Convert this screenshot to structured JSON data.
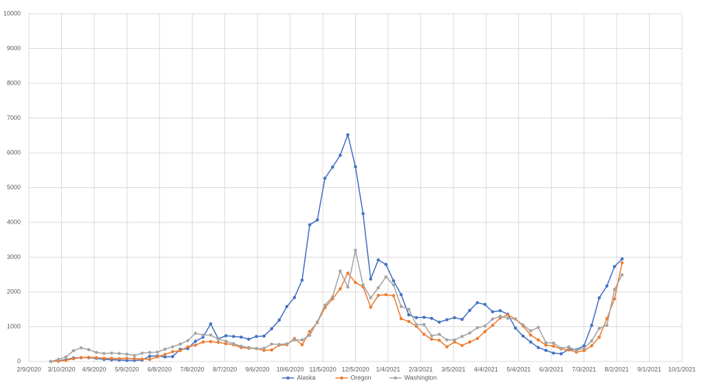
{
  "chart_data": {
    "type": "line",
    "x": [
      "2/29/2020",
      "3/7/2020",
      "3/14/2020",
      "3/21/2020",
      "3/28/2020",
      "4/4/2020",
      "4/11/2020",
      "4/18/2020",
      "4/25/2020",
      "5/2/2020",
      "5/9/2020",
      "5/16/2020",
      "5/23/2020",
      "5/30/2020",
      "6/6/2020",
      "6/13/2020",
      "6/20/2020",
      "6/27/2020",
      "7/4/2020",
      "7/11/2020",
      "7/18/2020",
      "7/25/2020",
      "8/1/2020",
      "8/8/2020",
      "8/15/2020",
      "8/22/2020",
      "8/29/2020",
      "9/5/2020",
      "9/12/2020",
      "9/19/2020",
      "9/26/2020",
      "10/3/2020",
      "10/10/2020",
      "10/17/2020",
      "10/24/2020",
      "10/31/2020",
      "11/7/2020",
      "11/14/2020",
      "11/21/2020",
      "11/28/2020",
      "12/5/2020",
      "12/12/2020",
      "12/19/2020",
      "12/26/2020",
      "1/2/2021",
      "1/9/2021",
      "1/16/2021",
      "1/23/2021",
      "1/30/2021",
      "2/6/2021",
      "2/13/2021",
      "2/20/2021",
      "2/27/2021",
      "3/6/2021",
      "3/13/2021",
      "3/20/2021",
      "3/27/2021",
      "4/3/2021",
      "4/10/2021",
      "4/17/2021",
      "4/24/2021",
      "5/1/2021",
      "5/8/2021",
      "5/15/2021",
      "5/22/2021",
      "5/29/2021",
      "6/5/2021",
      "6/12/2021",
      "6/19/2021",
      "6/26/2021",
      "7/3/2021",
      "7/10/2021",
      "7/17/2021",
      "7/24/2021",
      "7/31/2021",
      "8/7/2021"
    ],
    "series": [
      {
        "name": "Alaska",
        "color": "#4472c4",
        "values": [
          0,
          20,
          50,
          100,
          110,
          110,
          90,
          60,
          50,
          40,
          30,
          30,
          40,
          150,
          160,
          130,
          140,
          350,
          370,
          580,
          700,
          1080,
          650,
          740,
          720,
          700,
          640,
          720,
          730,
          940,
          1190,
          1580,
          1840,
          2340,
          3930,
          4070,
          5270,
          5590,
          5930,
          6520,
          5600,
          4250,
          2370,
          2920,
          2790,
          2320,
          1920,
          1340,
          1260,
          1270,
          1240,
          1130,
          1200,
          1260,
          1210,
          1470,
          1690,
          1640,
          1430,
          1460,
          1360,
          960,
          730,
          560,
          400,
          320,
          240,
          220,
          350,
          340,
          450,
          1040,
          1830,
          2170,
          2730,
          2950
        ]
      },
      {
        "name": "Oregon",
        "color": "#ed7d31",
        "values": [
          0,
          10,
          30,
          80,
          110,
          120,
          110,
          90,
          90,
          80,
          90,
          80,
          70,
          60,
          130,
          200,
          280,
          310,
          420,
          470,
          560,
          570,
          550,
          510,
          480,
          400,
          380,
          370,
          320,
          330,
          470,
          480,
          660,
          480,
          860,
          1120,
          1550,
          1800,
          2090,
          2540,
          2270,
          2150,
          1560,
          1900,
          1920,
          1890,
          1230,
          1150,
          1010,
          780,
          640,
          610,
          420,
          560,
          460,
          560,
          660,
          860,
          1040,
          1250,
          1340,
          1220,
          1020,
          760,
          620,
          470,
          440,
          360,
          330,
          270,
          310,
          450,
          700,
          1230,
          1800,
          2840
        ]
      },
      {
        "name": "Washington",
        "color": "#a5a5a5",
        "values": [
          0,
          60,
          130,
          310,
          390,
          340,
          260,
          230,
          240,
          230,
          210,
          170,
          240,
          260,
          270,
          350,
          420,
          500,
          600,
          810,
          760,
          760,
          640,
          580,
          510,
          440,
          400,
          370,
          380,
          500,
          490,
          510,
          620,
          620,
          750,
          1140,
          1620,
          1860,
          2600,
          2140,
          3200,
          2200,
          1830,
          2120,
          2430,
          2200,
          1580,
          1500,
          1060,
          1060,
          740,
          780,
          620,
          620,
          720,
          820,
          970,
          1020,
          1220,
          1300,
          1240,
          1220,
          1050,
          880,
          980,
          540,
          530,
          380,
          420,
          320,
          380,
          590,
          950,
          1040,
          2070,
          2490
        ]
      }
    ],
    "xlim": [
      "2/9/2020",
      "10/1/2021"
    ],
    "xticks": [
      "2/9/2020",
      "3/10/2020",
      "4/9/2020",
      "5/9/2020",
      "6/8/2020",
      "7/8/2020",
      "8/7/2020",
      "9/6/2020",
      "10/6/2020",
      "11/5/2020",
      "12/5/2020",
      "1/4/2021",
      "2/3/2021",
      "3/5/2021",
      "4/4/2021",
      "5/4/2021",
      "6/3/2021",
      "7/3/2021",
      "8/2/2021",
      "9/1/2021",
      "10/1/2021"
    ],
    "ylim": [
      0,
      10000
    ],
    "yticks": [
      0,
      1000,
      2000,
      3000,
      4000,
      5000,
      6000,
      7000,
      8000,
      9000,
      10000
    ],
    "grid": true,
    "legend": "bottom"
  }
}
